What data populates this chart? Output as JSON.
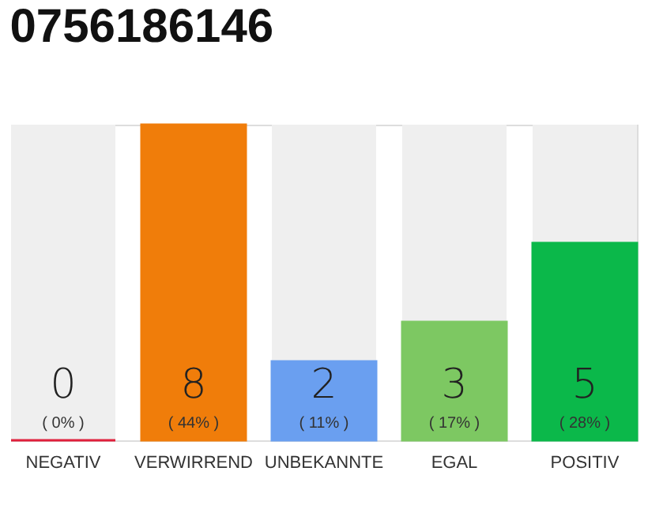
{
  "chart_data": {
    "type": "bar",
    "title": "0756186146",
    "categories": [
      "NEGATIV",
      "VERWIRREND",
      "UNBEKANNTE",
      "EGAL",
      "POSITIV"
    ],
    "values": [
      0,
      8,
      2,
      3,
      5
    ],
    "colors": [
      "#e0203c",
      "#f07d0a",
      "#6a9ff0",
      "#7dc862",
      "#0bb84a"
    ],
    "data_labels": true,
    "legend": false,
    "annotations": [
      "( 0% )",
      "( 44% )",
      "( 11% )",
      "( 17% )",
      "( 28% )"
    ]
  }
}
